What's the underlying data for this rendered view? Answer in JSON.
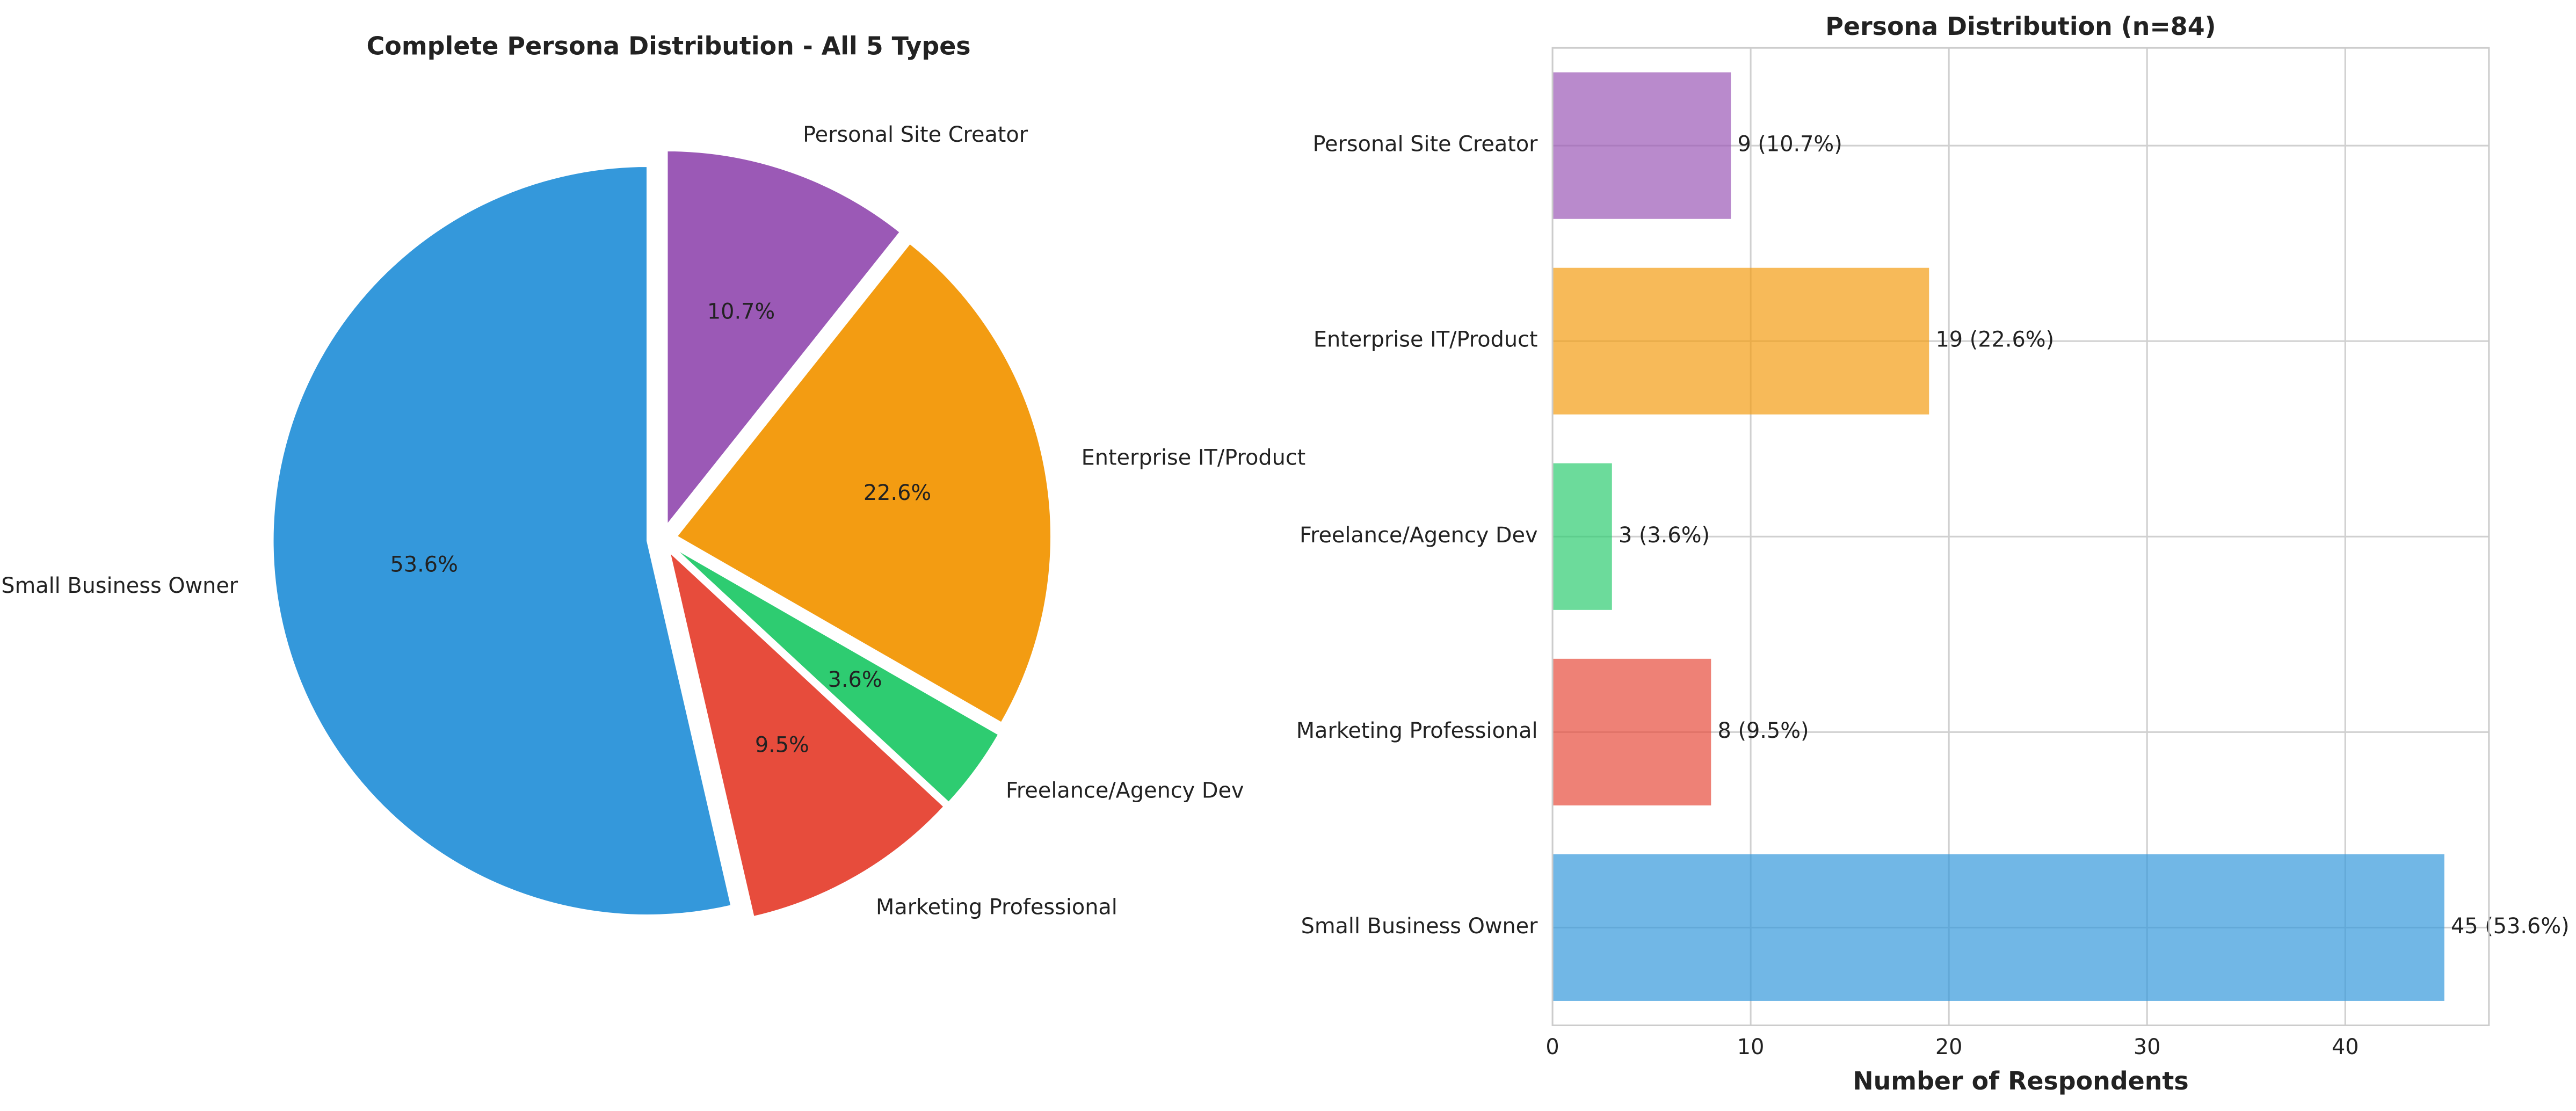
{
  "chart_data": [
    {
      "type": "pie",
      "title": "Complete Persona Distribution - All 5 Types",
      "categories": [
        "Small Business Owner",
        "Marketing Professional",
        "Freelance/Agency Dev",
        "Enterprise IT/Product",
        "Personal Site Creator"
      ],
      "values": [
        53.6,
        9.5,
        3.6,
        22.6,
        10.7
      ],
      "value_labels": [
        "53.6%",
        "9.5%",
        "3.6%",
        "22.6%",
        "10.7%"
      ],
      "colors": [
        "#3498db",
        "#e74c3c",
        "#2ecc71",
        "#f39c12",
        "#9b59b6"
      ]
    },
    {
      "type": "barh",
      "title": "Persona Distribution (n=84)",
      "xlabel": "Number of Respondents",
      "categories": [
        "Small Business Owner",
        "Marketing Professional",
        "Freelance/Agency Dev",
        "Enterprise IT/Product",
        "Personal Site Creator"
      ],
      "values": [
        45,
        8,
        3,
        19,
        9
      ],
      "value_labels": [
        "45 (53.6%)",
        "8 (9.5%)",
        "3 (3.6%)",
        "19 (22.6%)",
        "9 (10.7%)"
      ],
      "colors": [
        "#3498db",
        "#e74c3c",
        "#2ecc71",
        "#f39c12",
        "#9b59b6"
      ],
      "opacity": 0.7,
      "xlim": [
        0,
        47.25
      ],
      "xticks": [
        0,
        10,
        20,
        30,
        40
      ],
      "grid": true
    }
  ]
}
